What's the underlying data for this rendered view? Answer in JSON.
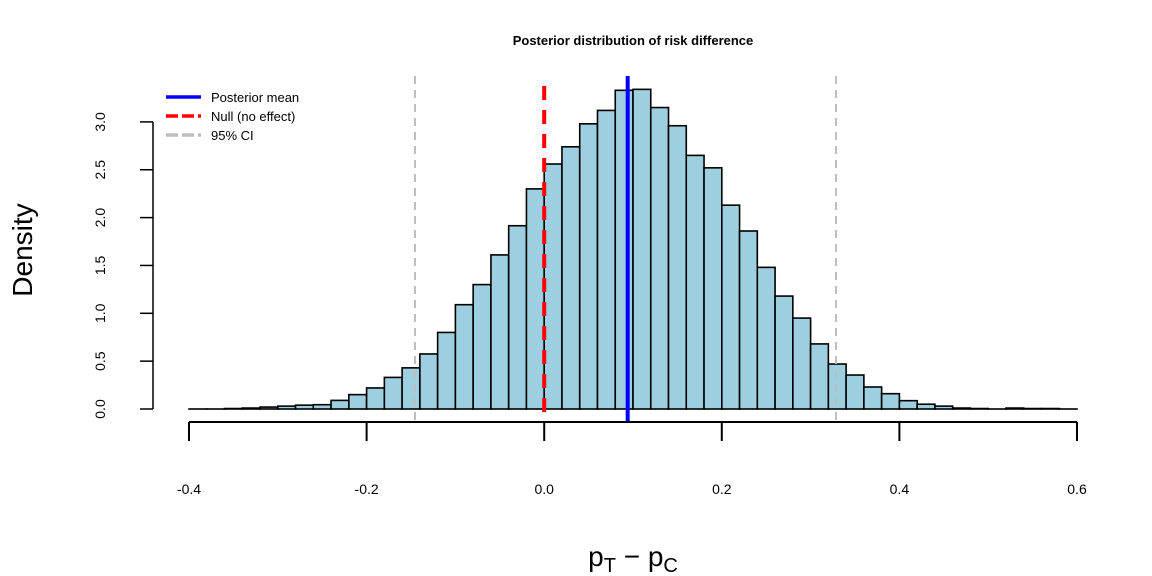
{
  "chart_data": {
    "type": "bar",
    "title": "Posterior distribution of risk difference",
    "xlabel_main": "p",
    "xlabel_sub1": "T",
    "xlabel_minus": " − ",
    "xlabel_sub2": "C",
    "ylabel": "Density",
    "xlim": [
      -0.4,
      0.6
    ],
    "ylim": [
      0,
      3.0
    ],
    "xticks": [
      "-0.4",
      "-0.2",
      "0.0",
      "0.2",
      "0.4",
      "0.6"
    ],
    "xtick_values": [
      -0.4,
      -0.2,
      0.0,
      0.2,
      0.4,
      0.6
    ],
    "yticks": [
      "0.0",
      "0.5",
      "1.0",
      "1.5",
      "2.0",
      "2.5",
      "3.0"
    ],
    "ytick_values": [
      0,
      0.5,
      1.0,
      1.5,
      2.0,
      2.5,
      3.0
    ],
    "bin_start": -0.4,
    "bin_width": 0.02,
    "values": [
      0,
      0,
      0.005,
      0.01,
      0.02,
      0.03,
      0.04,
      0.045,
      0.09,
      0.15,
      0.22,
      0.33,
      0.43,
      0.575,
      0.8,
      1.09,
      1.3,
      1.61,
      1.915,
      2.3,
      2.56,
      2.74,
      2.98,
      3.12,
      3.33,
      3.34,
      3.15,
      2.96,
      2.65,
      2.52,
      2.13,
      1.86,
      1.48,
      1.18,
      0.95,
      0.68,
      0.47,
      0.355,
      0.23,
      0.16,
      0.087,
      0.05,
      0.03,
      0.01,
      0.005,
      0,
      0.01,
      0.005,
      0.005,
      0
    ],
    "bar_fill": "#9ecfe0",
    "lines": [
      {
        "name": "Posterior mean",
        "x": 0.094,
        "color": "#0000ff",
        "style": "solid"
      },
      {
        "name": "Null (no effect)",
        "x": 0.0,
        "color": "#ff0000",
        "style": "dashed"
      },
      {
        "name": "95% CI",
        "x": -0.1455,
        "color": "#bebebe",
        "style": "dashed"
      },
      {
        "name": "95% CI",
        "x": 0.3286,
        "color": "#bebebe",
        "style": "dashed"
      }
    ],
    "legend": {
      "position": "top-left",
      "entries": [
        {
          "label": "Posterior mean",
          "color": "#0000ff"
        },
        {
          "label": "Null (no effect)",
          "color": "#ff0000"
        },
        {
          "label": "95% CI",
          "color": "#bebebe"
        }
      ]
    }
  }
}
